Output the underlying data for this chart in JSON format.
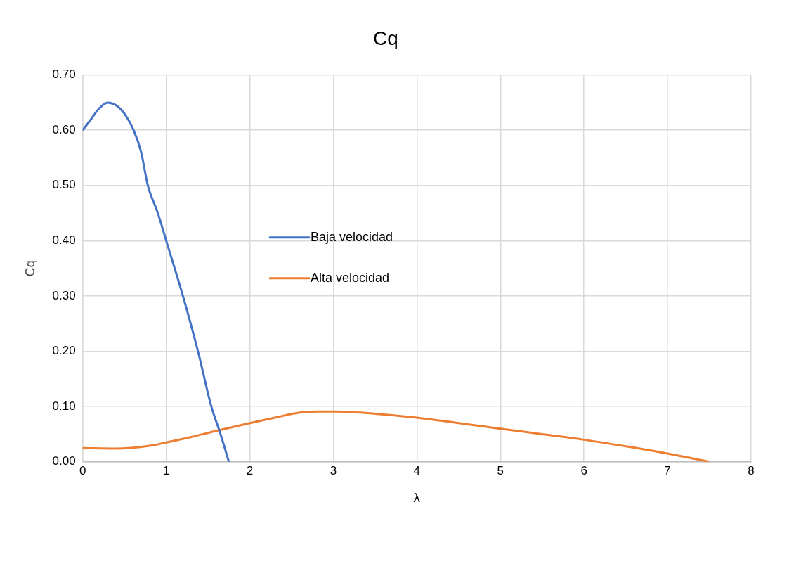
{
  "chart_data": {
    "type": "line",
    "title": "Cq",
    "xlabel": "λ",
    "ylabel": "Cq",
    "xlim": [
      0,
      8
    ],
    "xticks": [
      0,
      1,
      2,
      3,
      4,
      5,
      6,
      7,
      8
    ],
    "ylim": [
      0,
      0.7
    ],
    "yticks": [
      {
        "value": 0,
        "label": "0.00"
      },
      {
        "value": 0.1,
        "label": "0.10"
      },
      {
        "value": 0.2,
        "label": "0.20"
      },
      {
        "value": 0.3,
        "label": "0.30"
      },
      {
        "value": 0.4,
        "label": "0.40"
      },
      {
        "value": 0.5,
        "label": "0.50"
      },
      {
        "value": 0.6,
        "label": "0.60"
      },
      {
        "value": 0.7,
        "label": "0.70"
      }
    ],
    "grid": true,
    "legend": "center",
    "marker": "none",
    "line_style": "solid",
    "series": [
      {
        "name": "Baja velocidad",
        "color": "#4472c4",
        "x": [
          0,
          0.1,
          0.2,
          0.3,
          0.4,
          0.5,
          0.61,
          0.7,
          0.78,
          0.9,
          1.0,
          1.2,
          1.38,
          1.54,
          1.65,
          1.75
        ],
        "values": [
          0.6,
          0.62,
          0.64,
          0.65,
          0.645,
          0.63,
          0.6,
          0.56,
          0.5,
          0.45,
          0.4,
          0.3,
          0.2,
          0.1,
          0.05,
          0
        ]
      },
      {
        "name": "Alta velocidad",
        "color": "#ed7d31",
        "x": [
          0,
          0.4,
          0.8,
          1.0,
          1.3,
          1.6,
          2.0,
          2.3,
          2.6,
          2.8,
          3.0,
          3.5,
          4.0,
          4.5,
          5.0,
          5.5,
          6.0,
          6.5,
          7.0,
          7.5
        ],
        "values": [
          0.025,
          0.024,
          0.029,
          0.035,
          0.045,
          0.056,
          0.07,
          0.08,
          0.089,
          0.091,
          0.091,
          0.087,
          0.08,
          0.07,
          0.06,
          0.05,
          0.04,
          0.028,
          0.015,
          0
        ]
      }
    ]
  }
}
